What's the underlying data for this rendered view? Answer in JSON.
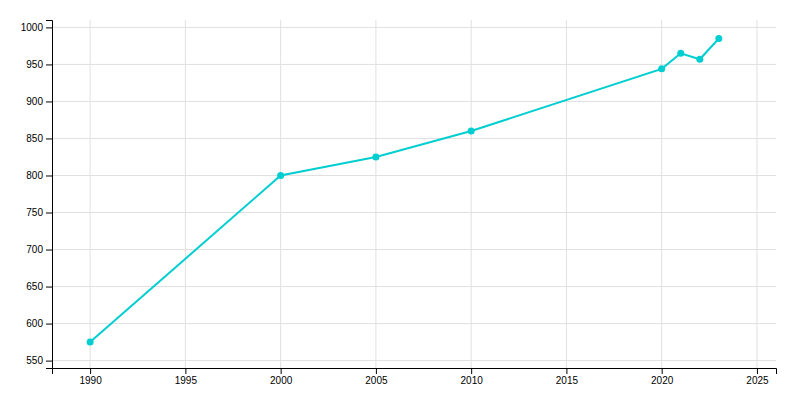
{
  "chart_data": {
    "type": "line",
    "x": [
      1990,
      2000,
      2005,
      2010,
      2020,
      2021,
      2022,
      2023
    ],
    "values": [
      575,
      800,
      825,
      860,
      944,
      965,
      957,
      985
    ],
    "color": "#00CED1",
    "marker": "circle",
    "xlim": [
      1988,
      2026
    ],
    "ylim": [
      540,
      1010
    ],
    "xticks": [
      1990,
      1995,
      2000,
      2005,
      2010,
      2015,
      2020,
      2025
    ],
    "yticks": [
      550,
      600,
      650,
      700,
      750,
      800,
      850,
      900,
      950,
      1000
    ],
    "grid": true
  }
}
